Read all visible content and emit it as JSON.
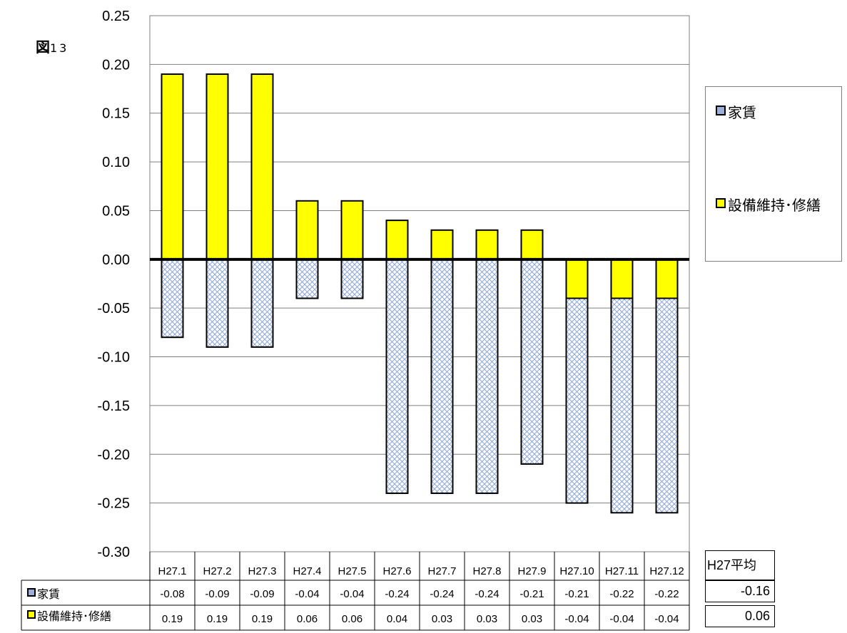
{
  "figure_label": "図",
  "figure_number": "13",
  "chart_data": {
    "type": "bar",
    "stacked": true,
    "categories": [
      "H27.1",
      "H27.2",
      "H27.3",
      "H27.4",
      "H27.5",
      "H27.6",
      "H27.7",
      "H27.8",
      "H27.9",
      "H27.10",
      "H27.11",
      "H27.12"
    ],
    "series": [
      {
        "name": "家賃",
        "values": [
          -0.08,
          -0.09,
          -0.09,
          -0.04,
          -0.04,
          -0.24,
          -0.24,
          -0.24,
          -0.21,
          -0.21,
          -0.22,
          -0.22
        ],
        "color": "#9ab0d8",
        "pattern": "crosshatch"
      },
      {
        "name": "設備維持･修繕",
        "values": [
          0.19,
          0.19,
          0.19,
          0.06,
          0.06,
          0.04,
          0.03,
          0.03,
          0.03,
          -0.04,
          -0.04,
          -0.04
        ],
        "color": "#ffff00"
      }
    ],
    "display_rent_neg": [
      -0.08,
      -0.09,
      -0.09,
      -0.04,
      -0.04,
      -0.24,
      -0.24,
      -0.24,
      -0.21,
      -0.25,
      -0.26,
      -0.26
    ],
    "ylim": [
      -0.3,
      0.25
    ],
    "yticks": [
      "0.25",
      "0.20",
      "0.15",
      "0.10",
      "0.05",
      "0.00",
      "-0.05",
      "-0.10",
      "-0.15",
      "-0.20",
      "-0.25",
      "-0.30"
    ],
    "grid": true,
    "legend": "right",
    "data_table": true
  },
  "legend": {
    "rent": "家賃",
    "maintenance": "設備維持･修繕"
  },
  "table": {
    "rent_values": [
      "-0.08",
      "-0.09",
      "-0.09",
      "-0.04",
      "-0.04",
      "-0.24",
      "-0.24",
      "-0.24",
      "-0.21",
      "-0.21",
      "-0.22",
      "-0.22"
    ],
    "maintenance_values": [
      "0.19",
      "0.19",
      "0.19",
      "0.06",
      "0.06",
      "0.04",
      "0.03",
      "0.03",
      "0.03",
      "-0.04",
      "-0.04",
      "-0.04"
    ]
  },
  "average": {
    "header": "H27平均",
    "rent": "-0.16",
    "maintenance": "0.06"
  },
  "colors": {
    "rent": "#9ab0d8",
    "maintenance": "#ffff00",
    "gridline": "#7f7f7f"
  }
}
